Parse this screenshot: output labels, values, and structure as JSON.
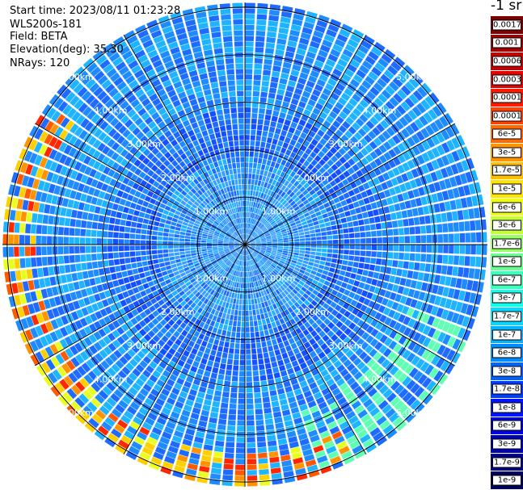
{
  "header": {
    "start_time": "Start time: 2023/08/11 01:23:28",
    "instrument": "WLS200s-181",
    "field": "Field: BETA",
    "elevation": "Elevation(deg): 35.30",
    "nrays": "NRays: 120"
  },
  "colorbar": {
    "title": "-1 sr",
    "levels": [
      {
        "label": "0.0017",
        "color": "#7a0000"
      },
      {
        "label": "0.001",
        "color": "#a00000"
      },
      {
        "label": "0.0006",
        "color": "#c80000"
      },
      {
        "label": "0.0003",
        "color": "#e30000"
      },
      {
        "label": "0.00017",
        "color": "#ff1a00"
      },
      {
        "label": "0.0001",
        "color": "#ff4000"
      },
      {
        "label": "6e-5",
        "color": "#ff6a00"
      },
      {
        "label": "3e-5",
        "color": "#ff9400"
      },
      {
        "label": "1.7e-5",
        "color": "#ffbe00"
      },
      {
        "label": "1e-5",
        "color": "#ffe400"
      },
      {
        "label": "6e-6",
        "color": "#f0ff10"
      },
      {
        "label": "3e-6",
        "color": "#c4ff3a"
      },
      {
        "label": "1.7e-6",
        "color": "#96ff66"
      },
      {
        "label": "1e-6",
        "color": "#6aff92"
      },
      {
        "label": "6e-7",
        "color": "#3effbe"
      },
      {
        "label": "3e-7",
        "color": "#10ffea"
      },
      {
        "label": "1.7e-7",
        "color": "#00dcff"
      },
      {
        "label": "1e-7",
        "color": "#00b4ff"
      },
      {
        "label": "6e-8",
        "color": "#008cff"
      },
      {
        "label": "3e-8",
        "color": "#0064ff"
      },
      {
        "label": "1.7e-8",
        "color": "#003cff"
      },
      {
        "label": "1e-8",
        "color": "#0014ff"
      },
      {
        "label": "6e-9",
        "color": "#0000e0"
      },
      {
        "label": "3e-9",
        "color": "#0000b4"
      },
      {
        "label": "1.7e-9",
        "color": "#000088"
      },
      {
        "label": "1e-9",
        "color": "#00005a"
      }
    ]
  },
  "range_rings": {
    "distances_km": [
      1,
      2,
      3,
      4,
      5
    ],
    "labels": [
      "1.00km",
      "2.00km",
      "3.00km",
      "4.00km",
      "5.00km"
    ]
  },
  "scan": {
    "max_range_km": 5.1,
    "num_rays": 120,
    "radial_bins": 44
  },
  "palette": {
    "background": "#ffffff",
    "grid": "#000000",
    "ring_label": "#ffffff"
  }
}
